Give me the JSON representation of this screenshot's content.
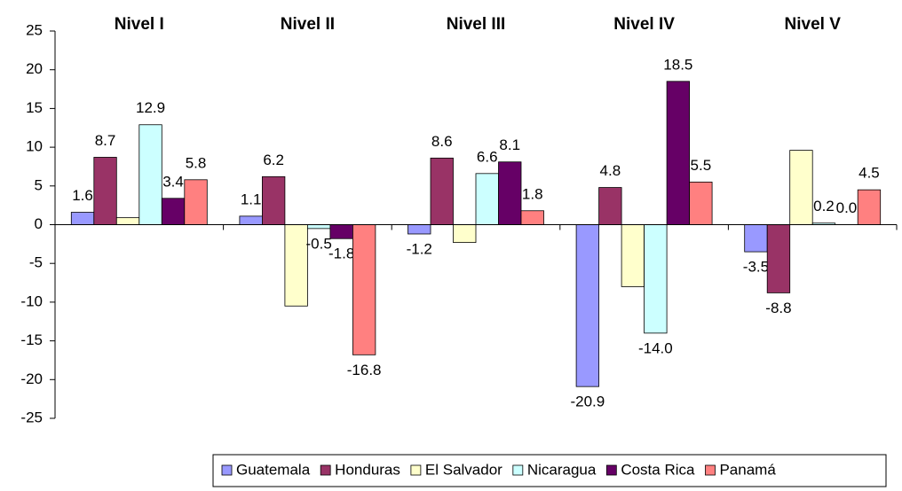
{
  "chart_data": {
    "type": "bar",
    "categories": [
      "Nivel I",
      "Nivel II",
      "Nivel III",
      "Nivel IV",
      "Nivel V"
    ],
    "series": [
      {
        "name": "Guatemala",
        "color": "#9999ff",
        "values": [
          1.6,
          1.1,
          -1.2,
          -20.9,
          -3.5
        ],
        "value_labels": [
          "1.6",
          "1.1",
          "-1.2",
          "-20.9",
          "-3.5"
        ]
      },
      {
        "name": "Honduras",
        "color": "#993366",
        "values": [
          8.7,
          6.2,
          8.6,
          4.8,
          -8.8
        ],
        "value_labels": [
          "8.7",
          "6.2",
          "8.6",
          "4.8",
          "-8.8"
        ]
      },
      {
        "name": "El Salvador",
        "color": "#ffffcc",
        "values": [
          0.9,
          -10.5,
          -2.3,
          -8.0,
          9.6
        ],
        "value_labels": [
          null,
          null,
          null,
          null,
          null
        ]
      },
      {
        "name": "Nicaragua",
        "color": "#ccffff",
        "values": [
          12.9,
          -0.5,
          6.6,
          -14.0,
          0.2
        ],
        "value_labels": [
          "12.9",
          "-0.5",
          "6.6",
          "-14.0",
          "0.2"
        ]
      },
      {
        "name": "Costa Rica",
        "color": "#660066",
        "values": [
          3.4,
          -1.8,
          8.1,
          18.5,
          0.0
        ],
        "value_labels": [
          "3.4",
          "-1.8",
          "8.1",
          "18.5",
          "0.0"
        ]
      },
      {
        "name": "Panamá",
        "color": "#ff8080",
        "values": [
          5.8,
          -16.8,
          1.8,
          5.5,
          4.5
        ],
        "value_labels": [
          "5.8",
          "-16.8",
          "1.8",
          "5.5",
          "4.5"
        ]
      }
    ],
    "ylim": [
      -25,
      25
    ],
    "yticks": [
      -25,
      -20,
      -15,
      -10,
      -5,
      0,
      5,
      10,
      15,
      20,
      25
    ],
    "grid": false,
    "legend": "bottom"
  }
}
